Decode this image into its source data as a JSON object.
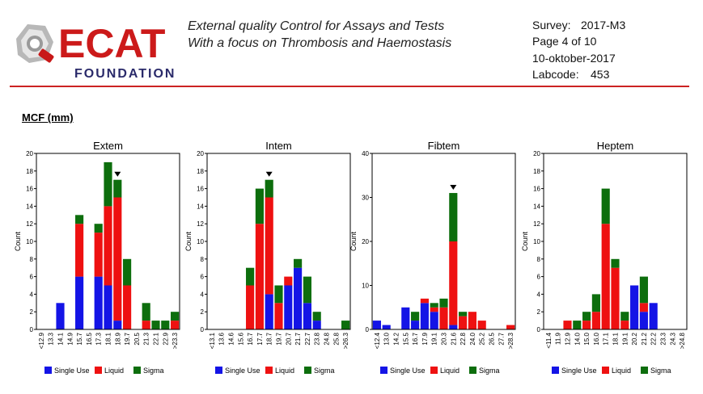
{
  "header": {
    "logo_text": "ECAT",
    "logo_subtext": "FOUNDATION",
    "subtitle_line1": "External quality Control for Assays and Tests",
    "subtitle_line2": "With a focus on Thrombosis and Haemostasis",
    "survey_label": "Survey:",
    "survey_value": "2017-M3",
    "page_info": "Page 4 of 10",
    "date": "10-oktober-2017",
    "labcode_label": "Labcode:",
    "labcode_value": "453"
  },
  "section_title": "MCF (mm)",
  "colors": {
    "single_use": "#1414e6",
    "liquid": "#ee1111",
    "sigma": "#0d6e0d",
    "rule": "#cc2222"
  },
  "legend_labels": [
    "Single Use",
    "Liquid",
    "Sigma"
  ],
  "chart_data": [
    {
      "type": "bar",
      "stacked": true,
      "title": "Extem",
      "ylabel": "Count",
      "ylim": [
        0,
        20
      ],
      "yticks": [
        0,
        2,
        4,
        6,
        8,
        10,
        12,
        14,
        16,
        18,
        20
      ],
      "categories": [
        "<12.9",
        "13.3",
        "14.1",
        "14.9",
        "15.7",
        "16.5",
        "17.3",
        "18.1",
        "18.9",
        "19.7",
        "20.5",
        "21.3",
        "22.1",
        "22.9",
        ">23.3"
      ],
      "series": [
        {
          "name": "Single Use",
          "values": [
            0,
            0,
            3,
            0,
            6,
            0,
            6,
            5,
            1,
            0,
            0,
            0,
            0,
            0,
            0
          ]
        },
        {
          "name": "Liquid",
          "values": [
            0,
            0,
            0,
            0,
            6,
            0,
            5,
            9,
            14,
            5,
            0,
            1,
            0,
            0,
            1
          ]
        },
        {
          "name": "Sigma",
          "values": [
            0,
            0,
            0,
            0,
            1,
            0,
            1,
            5,
            2,
            3,
            0,
            2,
            1,
            1,
            1
          ]
        }
      ],
      "marker_category": "18.9",
      "grid": false,
      "legend": "bottom"
    },
    {
      "type": "bar",
      "stacked": true,
      "title": "Intem",
      "ylabel": "Count",
      "ylim": [
        0,
        20
      ],
      "yticks": [
        0,
        2,
        4,
        6,
        8,
        10,
        12,
        14,
        16,
        18,
        20
      ],
      "categories": [
        "<13.1",
        "13.6",
        "14.6",
        "15.6",
        "16.7",
        "17.7",
        "18.7",
        "19.7",
        "20.7",
        "21.7",
        "22.7",
        "23.8",
        "24.8",
        "25.8",
        ">26.3"
      ],
      "series": [
        {
          "name": "Single Use",
          "values": [
            0,
            0,
            0,
            0,
            0,
            0,
            4,
            0,
            5,
            7,
            3,
            1,
            0,
            0,
            0
          ]
        },
        {
          "name": "Liquid",
          "values": [
            0,
            0,
            0,
            0,
            5,
            12,
            11,
            3,
            1,
            0,
            0,
            0,
            0,
            0,
            0
          ]
        },
        {
          "name": "Sigma",
          "values": [
            0,
            0,
            0,
            0,
            2,
            4,
            2,
            2,
            0,
            1,
            3,
            1,
            0,
            0,
            1
          ]
        }
      ],
      "marker_category": "18.7",
      "grid": false,
      "legend": "bottom"
    },
    {
      "type": "bar",
      "stacked": true,
      "title": "Fibtem",
      "ylabel": "Count",
      "ylim": [
        0,
        40
      ],
      "yticks": [
        0,
        10,
        20,
        30,
        40
      ],
      "categories": [
        "<12.4",
        "13.0",
        "14.2",
        "15.5",
        "16.7",
        "17.9",
        "19.1",
        "20.3",
        "21.6",
        "22.8",
        "24.0",
        "25.2",
        "26.5",
        "27.7",
        ">28.3"
      ],
      "series": [
        {
          "name": "Single Use",
          "values": [
            2,
            1,
            0,
            5,
            2,
            6,
            4,
            0,
            1,
            0,
            0,
            0,
            0,
            0,
            0
          ]
        },
        {
          "name": "Liquid",
          "values": [
            0,
            0,
            0,
            0,
            0,
            1,
            1,
            5,
            19,
            3,
            4,
            2,
            0,
            0,
            1
          ]
        },
        {
          "name": "Sigma",
          "values": [
            0,
            0,
            0,
            0,
            2,
            0,
            1,
            2,
            11,
            1,
            0,
            0,
            0,
            0,
            0
          ]
        }
      ],
      "marker_category": "21.6",
      "grid": false,
      "legend": "bottom"
    },
    {
      "type": "bar",
      "stacked": true,
      "title": "Heptem",
      "ylabel": "Count",
      "ylim": [
        0,
        20
      ],
      "yticks": [
        0,
        2,
        4,
        6,
        8,
        10,
        12,
        14,
        16,
        18,
        20
      ],
      "categories": [
        "<11.4",
        "11.9",
        "12.9",
        "14.0",
        "15.0",
        "16.0",
        "17.1",
        "18.1",
        "19.1",
        "20.2",
        "21.2",
        "22.2",
        "23.3",
        "24.3",
        ">24.8"
      ],
      "series": [
        {
          "name": "Single Use",
          "values": [
            0,
            0,
            0,
            0,
            0,
            0,
            0,
            0,
            0,
            5,
            2,
            3,
            0,
            0,
            0
          ]
        },
        {
          "name": "Liquid",
          "values": [
            0,
            0,
            1,
            0,
            1,
            2,
            12,
            7,
            1,
            0,
            1,
            0,
            0,
            0,
            0
          ]
        },
        {
          "name": "Sigma",
          "values": [
            0,
            0,
            0,
            1,
            1,
            2,
            4,
            1,
            1,
            0,
            3,
            0,
            0,
            0,
            0
          ]
        }
      ],
      "marker_category": null,
      "grid": false,
      "legend": "bottom"
    }
  ]
}
